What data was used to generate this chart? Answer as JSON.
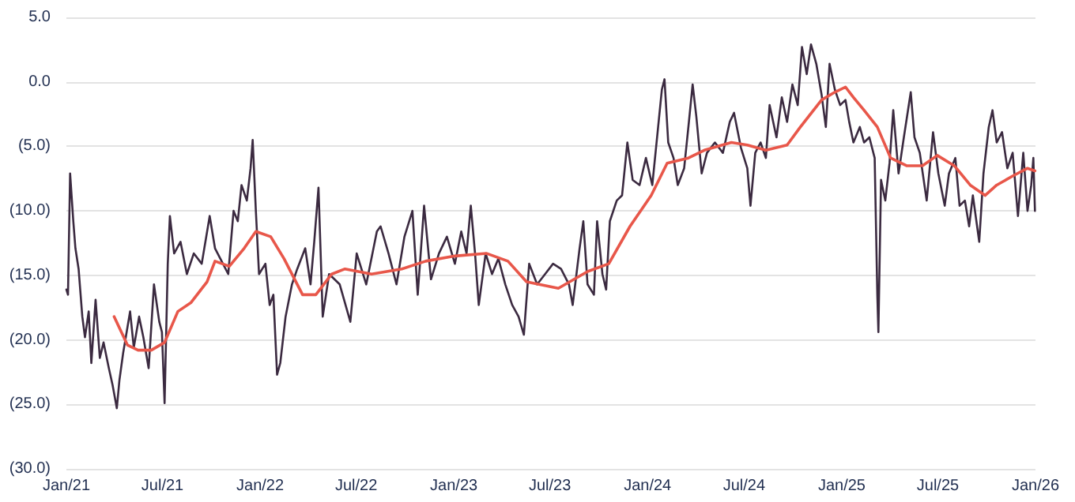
{
  "chart_data": {
    "type": "line",
    "grid": "y",
    "marker": "none",
    "line_style": "solid",
    "xlim": [
      "2021-01-01",
      "2026-01-01"
    ],
    "xticks": [
      {
        "value": "2021-01-01",
        "label": "Jan/21"
      },
      {
        "value": "2021-07-01",
        "label": "Jul/21"
      },
      {
        "value": "2022-01-01",
        "label": "Jan/22"
      },
      {
        "value": "2022-07-01",
        "label": "Jul/22"
      },
      {
        "value": "2023-01-01",
        "label": "Jan/23"
      },
      {
        "value": "2023-07-01",
        "label": "Jul/23"
      },
      {
        "value": "2024-01-01",
        "label": "Jan/24"
      },
      {
        "value": "2024-07-01",
        "label": "Jul/24"
      },
      {
        "value": "2025-01-01",
        "label": "Jan/25"
      },
      {
        "value": "2025-07-01",
        "label": "Jul/25"
      },
      {
        "value": "2026-01-01",
        "label": "Jan/26"
      }
    ],
    "ylim": [
      -30,
      5
    ],
    "yticks": [
      {
        "value": 5,
        "label": "5.0"
      },
      {
        "value": 0,
        "label": "0.0"
      },
      {
        "value": -5,
        "label": "(5.0)"
      },
      {
        "value": -10,
        "label": "(10.0)"
      },
      {
        "value": -15,
        "label": "(15.0)"
      },
      {
        "value": -20,
        "label": "(20.0)"
      },
      {
        "value": -25,
        "label": "(25.0)"
      },
      {
        "value": -30,
        "label": "(30.0)"
      }
    ],
    "series": [
      {
        "color": "#3b2a40",
        "x": [
          "2021-01-01",
          "2021-01-04",
          "2021-01-08",
          "2021-01-14",
          "2021-01-18",
          "2021-01-24",
          "2021-01-31",
          "2021-02-05",
          "2021-02-12",
          "2021-02-17",
          "2021-02-25",
          "2021-03-05",
          "2021-03-12",
          "2021-03-22",
          "2021-03-29",
          "2021-04-06",
          "2021-04-11",
          "2021-04-18",
          "2021-05-01",
          "2021-05-08",
          "2021-05-18",
          "2021-05-26",
          "2021-06-05",
          "2021-06-15",
          "2021-06-25",
          "2021-06-30",
          "2021-07-05",
          "2021-07-11",
          "2021-07-15",
          "2021-07-23",
          "2021-08-04",
          "2021-08-16",
          "2021-08-29",
          "2021-09-13",
          "2021-09-28",
          "2021-10-08",
          "2021-10-23",
          "2021-11-02",
          "2021-11-12",
          "2021-11-20",
          "2021-11-27",
          "2021-12-07",
          "2021-12-14",
          "2021-12-18",
          "2021-12-24",
          "2021-12-30",
          "2022-01-11",
          "2022-01-19",
          "2022-01-26",
          "2022-02-02",
          "2022-02-08",
          "2022-02-18",
          "2022-03-02",
          "2022-03-12",
          "2022-03-27",
          "2022-04-06",
          "2022-04-13",
          "2022-04-21",
          "2022-04-29",
          "2022-05-11",
          "2022-05-31",
          "2022-06-20",
          "2022-07-02",
          "2022-07-20",
          "2022-08-09",
          "2022-08-16",
          "2022-08-31",
          "2022-09-15",
          "2022-09-30",
          "2022-10-15",
          "2022-10-25",
          "2022-11-06",
          "2022-11-19",
          "2022-12-04",
          "2022-12-19",
          "2023-01-03",
          "2023-01-15",
          "2023-01-25",
          "2023-02-02",
          "2023-02-10",
          "2023-02-17",
          "2023-03-02",
          "2023-03-14",
          "2023-03-26",
          "2023-04-08",
          "2023-04-21",
          "2023-05-03",
          "2023-05-13",
          "2023-05-23",
          "2023-06-07",
          "2023-06-22",
          "2023-07-07",
          "2023-07-22",
          "2023-08-06",
          "2023-08-13",
          "2023-08-26",
          "2023-09-02",
          "2023-09-10",
          "2023-09-22",
          "2023-09-28",
          "2023-10-08",
          "2023-10-15",
          "2023-10-22",
          "2023-11-04",
          "2023-11-14",
          "2023-11-24",
          "2023-12-04",
          "2023-12-17",
          "2023-12-29",
          "2024-01-10",
          "2024-01-20",
          "2024-01-28",
          "2024-02-02",
          "2024-02-09",
          "2024-02-19",
          "2024-02-27",
          "2024-03-10",
          "2024-03-18",
          "2024-03-26",
          "2024-04-02",
          "2024-04-12",
          "2024-04-22",
          "2024-05-07",
          "2024-05-22",
          "2024-06-04",
          "2024-06-12",
          "2024-06-25",
          "2024-07-07",
          "2024-07-13",
          "2024-07-22",
          "2024-08-01",
          "2024-08-11",
          "2024-08-18",
          "2024-08-31",
          "2024-09-10",
          "2024-09-20",
          "2024-09-30",
          "2024-10-10",
          "2024-10-18",
          "2024-10-27",
          "2024-11-04",
          "2024-11-14",
          "2024-11-24",
          "2024-12-02",
          "2024-12-09",
          "2024-12-19",
          "2024-12-29",
          "2025-01-08",
          "2025-01-15",
          "2025-01-23",
          "2025-02-04",
          "2025-02-12",
          "2025-02-22",
          "2025-03-04",
          "2025-03-09",
          "2025-03-11",
          "2025-03-16",
          "2025-03-24",
          "2025-04-01",
          "2025-04-08",
          "2025-04-18",
          "2025-04-28",
          "2025-05-11",
          "2025-05-18",
          "2025-05-28",
          "2025-06-10",
          "2025-06-22",
          "2025-07-02",
          "2025-07-14",
          "2025-07-22",
          "2025-08-03",
          "2025-08-11",
          "2025-08-21",
          "2025-08-29",
          "2025-09-05",
          "2025-09-17",
          "2025-09-25",
          "2025-10-05",
          "2025-10-12",
          "2025-10-20",
          "2025-10-30",
          "2025-11-09",
          "2025-11-19",
          "2025-11-29",
          "2025-12-09",
          "2025-12-17",
          "2025-12-24",
          "2025-12-28",
          "2025-12-31"
        ],
        "values": [
          -16.1,
          -16.5,
          -7.1,
          -10.8,
          -12.9,
          -14.5,
          -18.2,
          -19.8,
          -17.8,
          -21.8,
          -16.9,
          -21.4,
          -20.2,
          -22.2,
          -23.5,
          -25.3,
          -23.1,
          -21.0,
          -17.8,
          -20.6,
          -18.2,
          -19.8,
          -22.2,
          -15.7,
          -18.6,
          -19.4,
          -24.9,
          -14.1,
          -10.4,
          -13.3,
          -12.4,
          -14.9,
          -13.3,
          -14.1,
          -10.4,
          -12.9,
          -14.1,
          -14.9,
          -10.0,
          -10.8,
          -8.0,
          -9.2,
          -6.7,
          -4.5,
          -10.0,
          -14.9,
          -14.1,
          -17.3,
          -16.5,
          -22.7,
          -21.8,
          -18.2,
          -15.7,
          -14.5,
          -12.9,
          -15.7,
          -12.4,
          -8.2,
          -18.2,
          -14.9,
          -15.7,
          -18.6,
          -13.3,
          -15.7,
          -11.6,
          -11.2,
          -13.3,
          -15.7,
          -12.0,
          -10.0,
          -16.5,
          -9.6,
          -15.3,
          -13.3,
          -12.0,
          -14.1,
          -11.6,
          -13.3,
          -9.6,
          -13.3,
          -17.3,
          -13.3,
          -14.9,
          -13.7,
          -15.7,
          -17.3,
          -18.2,
          -19.6,
          -14.1,
          -15.7,
          -14.9,
          -14.1,
          -14.5,
          -15.7,
          -17.3,
          -12.9,
          -10.8,
          -15.7,
          -16.5,
          -10.8,
          -14.9,
          -16.1,
          -10.8,
          -9.2,
          -8.8,
          -4.7,
          -7.6,
          -8.0,
          -5.9,
          -8.0,
          -3.9,
          -0.6,
          0.2,
          -4.7,
          -5.9,
          -8.0,
          -6.7,
          -3.5,
          -0.2,
          -2.7,
          -7.1,
          -5.5,
          -4.7,
          -5.5,
          -3.1,
          -2.4,
          -5.1,
          -6.7,
          -9.6,
          -5.5,
          -4.7,
          -5.9,
          -1.8,
          -4.3,
          -1.2,
          -3.1,
          -0.2,
          -1.8,
          2.7,
          0.6,
          2.9,
          1.4,
          -1.0,
          -3.5,
          1.4,
          -0.6,
          -1.8,
          -1.4,
          -3.1,
          -4.7,
          -3.5,
          -4.7,
          -4.3,
          -5.9,
          -16.5,
          -19.4,
          -7.6,
          -9.2,
          -6.3,
          -2.2,
          -7.1,
          -4.3,
          -0.8,
          -4.3,
          -5.5,
          -9.2,
          -3.9,
          -7.1,
          -9.6,
          -7.1,
          -5.9,
          -9.6,
          -9.2,
          -11.2,
          -8.8,
          -12.4,
          -7.1,
          -3.5,
          -2.2,
          -4.7,
          -3.9,
          -6.7,
          -5.5,
          -10.4,
          -5.5,
          -10.0,
          -8.0,
          -5.9,
          -10.0
        ]
      },
      {
        "color": "#e8574a",
        "x": [
          "2021-04-01",
          "2021-04-26",
          "2021-05-16",
          "2021-06-10",
          "2021-07-05",
          "2021-07-30",
          "2021-08-24",
          "2021-09-23",
          "2021-10-08",
          "2021-11-04",
          "2021-12-02",
          "2021-12-24",
          "2022-01-21",
          "2022-02-15",
          "2022-03-22",
          "2022-04-16",
          "2022-05-16",
          "2022-06-10",
          "2022-07-30",
          "2022-09-25",
          "2022-11-09",
          "2023-01-03",
          "2023-03-04",
          "2023-04-13",
          "2023-05-18",
          "2023-07-17",
          "2023-09-10",
          "2023-10-20",
          "2023-11-29",
          "2024-01-08",
          "2024-02-07",
          "2024-03-18",
          "2024-04-17",
          "2024-06-07",
          "2024-07-07",
          "2024-08-11",
          "2024-09-20",
          "2024-10-15",
          "2024-11-24",
          "2024-12-19",
          "2025-01-08",
          "2025-01-23",
          "2025-02-12",
          "2025-03-09",
          "2025-04-03",
          "2025-05-03",
          "2025-06-02",
          "2025-06-30",
          "2025-08-01",
          "2025-08-31",
          "2025-09-28",
          "2025-10-20",
          "2025-11-19",
          "2025-12-17",
          "2025-12-31"
        ],
        "values": [
          -18.2,
          -20.4,
          -20.8,
          -20.8,
          -20.2,
          -17.8,
          -17.1,
          -15.5,
          -13.9,
          -14.3,
          -12.9,
          -11.6,
          -12.0,
          -13.7,
          -16.5,
          -16.5,
          -14.9,
          -14.5,
          -14.9,
          -14.5,
          -13.9,
          -13.5,
          -13.3,
          -13.9,
          -15.5,
          -16.0,
          -14.7,
          -14.1,
          -11.2,
          -8.8,
          -6.3,
          -5.9,
          -5.3,
          -4.7,
          -4.9,
          -5.3,
          -4.9,
          -3.5,
          -1.4,
          -0.8,
          -0.4,
          -1.2,
          -2.2,
          -3.5,
          -5.9,
          -6.5,
          -6.5,
          -5.7,
          -6.5,
          -8.0,
          -8.8,
          -8.0,
          -7.3,
          -6.7,
          -6.9
        ]
      }
    ]
  }
}
